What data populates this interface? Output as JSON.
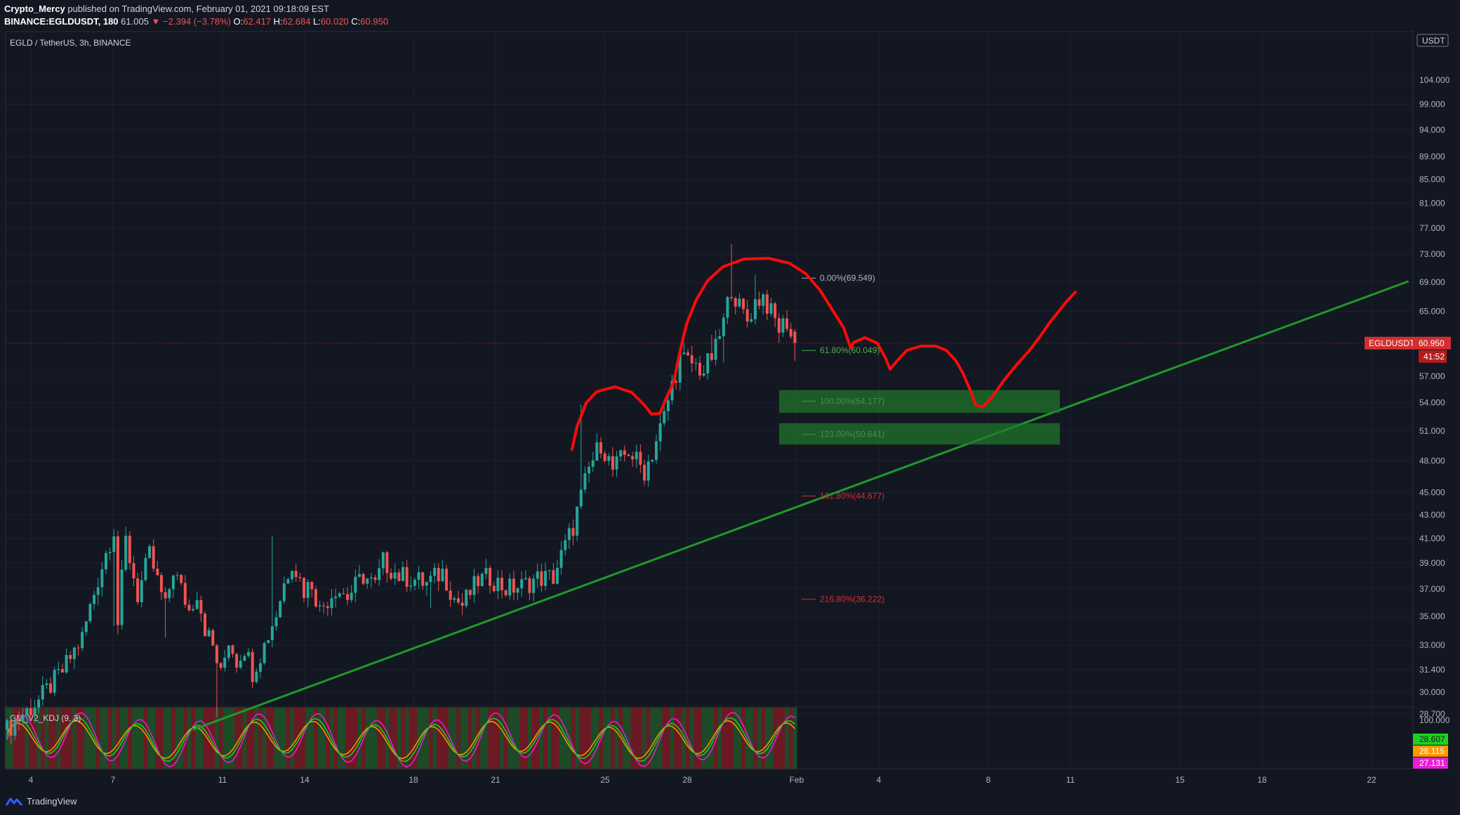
{
  "header": {
    "author": "Crypto_Mercy",
    "published_text": "published on TradingView.com, February 01, 2021 09:18:09 EST",
    "symbol_line": "BINANCE:EGLDUSDT, 180",
    "last": "61.005",
    "change": "−2.394 (−3.78%)",
    "o_label": "O:",
    "o_value": "62.417",
    "h_label": "H:",
    "h_value": "62.684",
    "l_label": "L:",
    "l_value": "60.020",
    "c_label": "C:",
    "c_value": "60.950"
  },
  "footer": {
    "brand": "TradingView"
  },
  "colors": {
    "background": "#131722",
    "grid": "#1e2230",
    "up": "#26a69a",
    "down": "#ef5350",
    "trendline": "#1f9a2b",
    "drawing": "#ff0a0a",
    "price_tag": "#d32f2f"
  },
  "chart_data": {
    "type": "candlestick",
    "title": "EGLD / TetherUS, 3h, BINANCE",
    "currency": "USDT",
    "y_axis_scale": "log",
    "y_ticks": [
      "104.000",
      "99.000",
      "94.000",
      "89.000",
      "85.000",
      "81.000",
      "77.000",
      "73.000",
      "69.000",
      "65.000",
      "57.000",
      "54.000",
      "51.000",
      "48.000",
      "45.000",
      "43.000",
      "41.000",
      "39.000",
      "37.000",
      "35.000",
      "33.000",
      "31.400",
      "30.000",
      "28.700"
    ],
    "x_ticks": [
      "4",
      "7",
      "11",
      "14",
      "18",
      "21",
      "25",
      "28",
      "Feb",
      "4",
      "8",
      "11",
      "15",
      "18",
      "22"
    ],
    "last_price_label": "EGLDUSDT",
    "last_price": "60.950",
    "countdown": "41:52",
    "candle_path": [
      [
        0,
        27.8
      ],
      [
        8,
        29.5
      ],
      [
        14,
        31.3
      ],
      [
        19,
        33.5
      ],
      [
        24,
        38.8
      ],
      [
        27,
        41.8
      ],
      [
        28,
        34.5
      ],
      [
        30,
        40.8
      ],
      [
        33,
        36.5
      ],
      [
        36,
        39.6
      ],
      [
        40,
        35.6
      ],
      [
        42,
        38.5
      ],
      [
        46,
        35.4
      ],
      [
        48,
        36.8
      ],
      [
        50,
        34.2
      ],
      [
        52,
        32.9
      ],
      [
        54,
        31.0
      ],
      [
        56,
        33.4
      ],
      [
        58,
        32.0
      ],
      [
        60,
        32.9
      ],
      [
        62,
        31.3
      ],
      [
        65,
        33.0
      ],
      [
        68,
        35.2
      ],
      [
        70,
        37.4
      ],
      [
        72,
        39.2
      ],
      [
        75,
        36.9
      ],
      [
        77,
        37.5
      ],
      [
        79,
        35.4
      ],
      [
        83,
        37.1
      ],
      [
        86,
        36.4
      ],
      [
        90,
        38.0
      ],
      [
        93,
        37.2
      ],
      [
        95,
        39.1
      ],
      [
        99,
        38.0
      ],
      [
        102,
        37.8
      ],
      [
        106,
        37.4
      ],
      [
        110,
        38.3
      ],
      [
        113,
        36.3
      ],
      [
        115,
        35.8
      ],
      [
        119,
        37.6
      ],
      [
        122,
        37.9
      ],
      [
        126,
        37.0
      ],
      [
        130,
        37.2
      ],
      [
        134,
        37.8
      ],
      [
        138,
        37.9
      ],
      [
        143,
        42.0
      ],
      [
        147,
        47.2
      ],
      [
        150,
        49.8
      ],
      [
        153,
        47.1
      ],
      [
        157,
        49.0
      ],
      [
        159,
        48.0
      ],
      [
        161,
        47.0
      ],
      [
        163,
        48.8
      ],
      [
        166,
        52.5
      ],
      [
        168,
        56.0
      ],
      [
        170,
        59.0
      ],
      [
        173,
        58.5
      ],
      [
        176,
        57.6
      ],
      [
        179,
        60.2
      ],
      [
        181,
        63.6
      ],
      [
        183,
        68.3
      ],
      [
        185,
        65.5
      ],
      [
        187,
        63.8
      ],
      [
        189,
        66.3
      ],
      [
        191,
        67.1
      ],
      [
        193,
        64.7
      ],
      [
        195,
        62.8
      ],
      [
        197,
        63.7
      ],
      [
        199,
        60.0
      ]
    ],
    "fib_levels": [
      {
        "label": "0.00%(69.549)",
        "value": 69.549,
        "color": "#b2b5be"
      },
      {
        "label": "61.80%(60.049)",
        "value": 60.049,
        "color": "#4caf50"
      },
      {
        "label": "100.00%(54.177)",
        "value": 54.177,
        "color": "#b2b5be"
      },
      {
        "label": "123.00%(50.641)",
        "value": 50.641,
        "color": "#b2b5be"
      },
      {
        "label": "161.80%(44.677)",
        "value": 44.677,
        "color": "#d32f2f"
      },
      {
        "label": "216.80%(36.222)",
        "value": 36.222,
        "color": "#d32f2f"
      }
    ],
    "support_zones": [
      [
        52.9,
        55.4
      ],
      [
        49.6,
        51.8
      ]
    ],
    "trendline": [
      [
        47,
        27.8
      ],
      [
        354,
        69.1
      ]
    ],
    "indicator": {
      "name": "GM_V2_KDJ (9, 3)",
      "y_tick": "100.000",
      "values": [
        {
          "value": "28.607",
          "color": "#1fd11f"
        },
        {
          "value": "28.115",
          "color": "#ff9800"
        },
        {
          "value": "27.131",
          "color": "#e91ed6"
        }
      ]
    }
  }
}
